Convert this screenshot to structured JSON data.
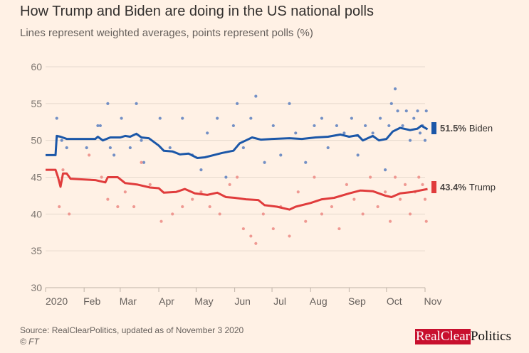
{
  "title": "How Trump and Biden are doing in the US national polls",
  "subtitle": "Lines represent weighted averages, points represent polls (%)",
  "source": "Source: RealClearPolitics, updated as of November 3 2020",
  "credit": "© FT",
  "logo": {
    "part1": "RealClear",
    "part2": "Politics"
  },
  "labels": {
    "biden": {
      "value": "51.5%",
      "name": "Biden"
    },
    "trump": {
      "value": "43.4%",
      "name": "Trump"
    }
  },
  "chart_data": {
    "type": "line",
    "title": "How Trump and Biden are doing in the US national polls",
    "subtitle": "Lines represent weighted averages, points represent polls (%)",
    "ylim": [
      30,
      60
    ],
    "yticks": [
      30,
      35,
      40,
      45,
      50,
      55,
      60
    ],
    "xlim": [
      "2020-01-01",
      "2020-11-03"
    ],
    "xticks": [
      {
        "date": "2020-01-01",
        "label": "2020"
      },
      {
        "date": "2020-02-01",
        "label": "Feb"
      },
      {
        "date": "2020-03-01",
        "label": "Mar"
      },
      {
        "date": "2020-04-01",
        "label": "Apr"
      },
      {
        "date": "2020-05-01",
        "label": "May"
      },
      {
        "date": "2020-06-01",
        "label": "Jun"
      },
      {
        "date": "2020-07-01",
        "label": "Jul"
      },
      {
        "date": "2020-08-01",
        "label": "Aug"
      },
      {
        "date": "2020-09-01",
        "label": "Sep"
      },
      {
        "date": "2020-10-01",
        "label": "Oct"
      },
      {
        "date": "2020-11-01",
        "label": "Nov"
      }
    ],
    "grid": true,
    "colors": {
      "biden": "#1b57a8",
      "trump": "#e03c3c",
      "biden_points": "#5b7fc0",
      "trump_points": "#ec8a84"
    },
    "series": [
      {
        "name": "Biden",
        "final": 51.5,
        "average": [
          [
            "2020-01-01",
            48
          ],
          [
            "2020-01-09",
            48
          ],
          [
            "2020-01-10",
            50.6
          ],
          [
            "2020-01-13",
            50.5
          ],
          [
            "2020-01-18",
            50.2
          ],
          [
            "2020-02-10",
            50.2
          ],
          [
            "2020-02-12",
            50.5
          ],
          [
            "2020-02-16",
            50.0
          ],
          [
            "2020-02-22",
            50.4
          ],
          [
            "2020-03-01",
            50.4
          ],
          [
            "2020-03-05",
            50.6
          ],
          [
            "2020-03-09",
            50.5
          ],
          [
            "2020-03-14",
            50.9
          ],
          [
            "2020-03-18",
            50.4
          ],
          [
            "2020-03-24",
            50.3
          ],
          [
            "2020-04-01",
            49.3
          ],
          [
            "2020-04-05",
            48.6
          ],
          [
            "2020-04-12",
            48.5
          ],
          [
            "2020-04-18",
            48.1
          ],
          [
            "2020-04-25",
            48.2
          ],
          [
            "2020-05-02",
            47.6
          ],
          [
            "2020-05-08",
            47.7
          ],
          [
            "2020-05-15",
            48.0
          ],
          [
            "2020-05-22",
            48.3
          ],
          [
            "2020-05-31",
            48.6
          ],
          [
            "2020-06-05",
            49.6
          ],
          [
            "2020-06-10",
            50.0
          ],
          [
            "2020-06-15",
            50.4
          ],
          [
            "2020-06-22",
            50.1
          ],
          [
            "2020-07-01",
            50.2
          ],
          [
            "2020-07-15",
            50.3
          ],
          [
            "2020-07-25",
            50.2
          ],
          [
            "2020-08-05",
            50.4
          ],
          [
            "2020-08-15",
            50.5
          ],
          [
            "2020-08-25",
            50.8
          ],
          [
            "2020-09-01",
            50.5
          ],
          [
            "2020-09-08",
            50.7
          ],
          [
            "2020-09-12",
            50.0
          ],
          [
            "2020-09-20",
            50.6
          ],
          [
            "2020-09-25",
            50.0
          ],
          [
            "2020-10-01",
            50.2
          ],
          [
            "2020-10-06",
            51.2
          ],
          [
            "2020-10-12",
            51.7
          ],
          [
            "2020-10-20",
            51.4
          ],
          [
            "2020-10-26",
            51.6
          ],
          [
            "2020-10-29",
            52.0
          ],
          [
            "2020-11-03",
            51.5
          ]
        ],
        "polls": [
          [
            "2020-01-10",
            53
          ],
          [
            "2020-01-14",
            50
          ],
          [
            "2020-01-18",
            49
          ],
          [
            "2020-02-03",
            49
          ],
          [
            "2020-02-12",
            52
          ],
          [
            "2020-02-14",
            52
          ],
          [
            "2020-02-20",
            55
          ],
          [
            "2020-02-22",
            49
          ],
          [
            "2020-02-25",
            48
          ],
          [
            "2020-03-02",
            53
          ],
          [
            "2020-03-09",
            49
          ],
          [
            "2020-03-14",
            55
          ],
          [
            "2020-03-18",
            50
          ],
          [
            "2020-03-20",
            47
          ],
          [
            "2020-04-02",
            53
          ],
          [
            "2020-04-10",
            49
          ],
          [
            "2020-04-20",
            53
          ],
          [
            "2020-04-28",
            48
          ],
          [
            "2020-05-05",
            46
          ],
          [
            "2020-05-10",
            51
          ],
          [
            "2020-05-18",
            53
          ],
          [
            "2020-05-25",
            45
          ],
          [
            "2020-05-31",
            52
          ],
          [
            "2020-06-03",
            55
          ],
          [
            "2020-06-08",
            49
          ],
          [
            "2020-06-14",
            53
          ],
          [
            "2020-06-18",
            56
          ],
          [
            "2020-06-25",
            47
          ],
          [
            "2020-07-02",
            52
          ],
          [
            "2020-07-08",
            48
          ],
          [
            "2020-07-15",
            55
          ],
          [
            "2020-07-20",
            51
          ],
          [
            "2020-07-28",
            47
          ],
          [
            "2020-08-04",
            52
          ],
          [
            "2020-08-10",
            53
          ],
          [
            "2020-08-15",
            49
          ],
          [
            "2020-08-22",
            52
          ],
          [
            "2020-08-28",
            51
          ],
          [
            "2020-09-03",
            53
          ],
          [
            "2020-09-08",
            48
          ],
          [
            "2020-09-14",
            52
          ],
          [
            "2020-09-20",
            51
          ],
          [
            "2020-09-26",
            53
          ],
          [
            "2020-09-30",
            46
          ],
          [
            "2020-10-03",
            52
          ],
          [
            "2020-10-05",
            55
          ],
          [
            "2020-10-08",
            57
          ],
          [
            "2020-10-10",
            54
          ],
          [
            "2020-10-14",
            52
          ],
          [
            "2020-10-17",
            54
          ],
          [
            "2020-10-20",
            50
          ],
          [
            "2020-10-23",
            53
          ],
          [
            "2020-10-26",
            54
          ],
          [
            "2020-10-28",
            51
          ],
          [
            "2020-10-30",
            52
          ],
          [
            "2020-11-01",
            50
          ],
          [
            "2020-11-02",
            54
          ]
        ]
      },
      {
        "name": "Trump",
        "final": 43.4,
        "average": [
          [
            "2020-01-01",
            46
          ],
          [
            "2020-01-09",
            46
          ],
          [
            "2020-01-11",
            45
          ],
          [
            "2020-01-13",
            43.7
          ],
          [
            "2020-01-15",
            45.5
          ],
          [
            "2020-01-18",
            45.5
          ],
          [
            "2020-01-21",
            44.8
          ],
          [
            "2020-02-10",
            44.6
          ],
          [
            "2020-02-18",
            44.3
          ],
          [
            "2020-02-20",
            45.0
          ],
          [
            "2020-02-28",
            45.0
          ],
          [
            "2020-03-05",
            44.2
          ],
          [
            "2020-03-15",
            44.0
          ],
          [
            "2020-03-25",
            43.6
          ],
          [
            "2020-04-01",
            43.5
          ],
          [
            "2020-04-05",
            42.9
          ],
          [
            "2020-04-15",
            43.0
          ],
          [
            "2020-04-22",
            43.4
          ],
          [
            "2020-04-30",
            42.8
          ],
          [
            "2020-05-10",
            42.6
          ],
          [
            "2020-05-18",
            42.9
          ],
          [
            "2020-05-25",
            42.3
          ],
          [
            "2020-06-01",
            42.2
          ],
          [
            "2020-06-10",
            42.0
          ],
          [
            "2020-06-20",
            41.9
          ],
          [
            "2020-06-25",
            41.2
          ],
          [
            "2020-07-05",
            41.0
          ],
          [
            "2020-07-15",
            40.6
          ],
          [
            "2020-07-20",
            41.0
          ],
          [
            "2020-08-01",
            41.5
          ],
          [
            "2020-08-10",
            42.0
          ],
          [
            "2020-08-20",
            42.2
          ],
          [
            "2020-09-01",
            42.8
          ],
          [
            "2020-09-10",
            43.2
          ],
          [
            "2020-09-20",
            43.1
          ],
          [
            "2020-09-30",
            42.5
          ],
          [
            "2020-10-05",
            42.3
          ],
          [
            "2020-10-12",
            42.8
          ],
          [
            "2020-10-22",
            43.0
          ],
          [
            "2020-11-03",
            43.4
          ]
        ],
        "polls": [
          [
            "2020-01-12",
            41
          ],
          [
            "2020-01-15",
            46
          ],
          [
            "2020-01-20",
            40
          ],
          [
            "2020-02-05",
            48
          ],
          [
            "2020-02-15",
            45
          ],
          [
            "2020-02-20",
            42
          ],
          [
            "2020-02-28",
            41
          ],
          [
            "2020-03-05",
            43
          ],
          [
            "2020-03-12",
            41
          ],
          [
            "2020-03-18",
            47
          ],
          [
            "2020-03-25",
            44
          ],
          [
            "2020-04-03",
            39
          ],
          [
            "2020-04-12",
            40
          ],
          [
            "2020-04-20",
            41
          ],
          [
            "2020-04-28",
            42
          ],
          [
            "2020-05-05",
            43
          ],
          [
            "2020-05-12",
            41
          ],
          [
            "2020-05-20",
            40
          ],
          [
            "2020-05-28",
            44
          ],
          [
            "2020-06-03",
            45
          ],
          [
            "2020-06-08",
            38
          ],
          [
            "2020-06-14",
            37
          ],
          [
            "2020-06-18",
            36
          ],
          [
            "2020-06-24",
            40
          ],
          [
            "2020-07-02",
            38
          ],
          [
            "2020-07-08",
            41
          ],
          [
            "2020-07-15",
            37
          ],
          [
            "2020-07-22",
            43
          ],
          [
            "2020-07-28",
            39
          ],
          [
            "2020-08-04",
            45
          ],
          [
            "2020-08-10",
            40
          ],
          [
            "2020-08-18",
            41
          ],
          [
            "2020-08-24",
            38
          ],
          [
            "2020-08-30",
            44
          ],
          [
            "2020-09-05",
            42
          ],
          [
            "2020-09-12",
            40
          ],
          [
            "2020-09-18",
            45
          ],
          [
            "2020-09-24",
            41
          ],
          [
            "2020-09-30",
            43
          ],
          [
            "2020-10-04",
            39
          ],
          [
            "2020-10-08",
            45
          ],
          [
            "2020-10-12",
            42
          ],
          [
            "2020-10-16",
            44
          ],
          [
            "2020-10-20",
            40
          ],
          [
            "2020-10-24",
            43
          ],
          [
            "2020-10-27",
            45
          ],
          [
            "2020-10-30",
            44
          ],
          [
            "2020-11-01",
            42
          ],
          [
            "2020-11-02",
            39
          ]
        ]
      }
    ]
  }
}
